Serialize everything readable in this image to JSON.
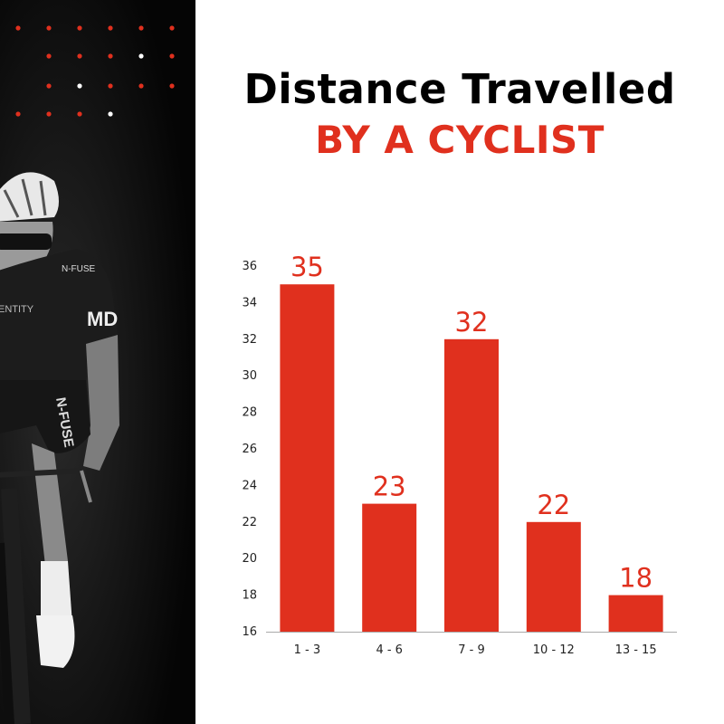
{
  "title": {
    "line1": "Distance Travelled",
    "line2": "BY A CYCLIST"
  },
  "colors": {
    "accent": "#e0301e",
    "background": "#ffffff",
    "panel": "#000000",
    "text": "#000000"
  },
  "photo": {
    "description_icon": "cyclist-photo",
    "jersey_text_1": "N-FUSE",
    "jersey_text_2": "MD",
    "jersey_text_3": "N-FUSE",
    "jersey_text_4": "ENTITY"
  },
  "chart_data": {
    "type": "bar",
    "categories": [
      "1 - 3",
      "4 - 6",
      "7 - 9",
      "10 - 12",
      "13 - 15"
    ],
    "values": [
      35,
      23,
      32,
      22,
      18
    ],
    "title": "Distance Travelled BY A CYCLIST",
    "xlabel": "",
    "ylabel": "",
    "ylim": [
      16,
      36
    ],
    "yticks": [
      16,
      18,
      20,
      22,
      24,
      26,
      28,
      30,
      32,
      34,
      36
    ],
    "grid": false,
    "legend": "none",
    "bar_color": "#e0301e"
  }
}
